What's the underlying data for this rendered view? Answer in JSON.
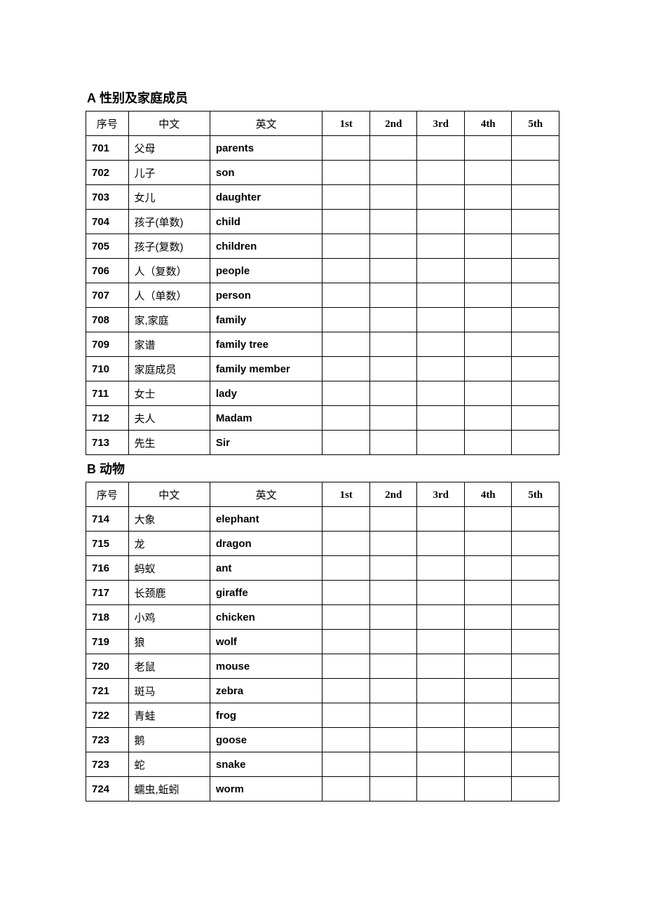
{
  "headers": {
    "seq": "序号",
    "cn": "中文",
    "en": "英文",
    "ord1": "1st",
    "ord2": "2nd",
    "ord3": "3rd",
    "ord4": "4th",
    "ord5": "5th"
  },
  "sections": [
    {
      "prefix": "A",
      "title": "性别及家庭成员",
      "rows": [
        {
          "seq": "701",
          "cn": "父母",
          "en": "parents"
        },
        {
          "seq": "702",
          "cn": "儿子",
          "en": "son"
        },
        {
          "seq": "703",
          "cn": "女儿",
          "en": "daughter"
        },
        {
          "seq": "704",
          "cn": "孩子(单数)",
          "en": "child"
        },
        {
          "seq": "705",
          "cn": "孩子(复数)",
          "en": "children"
        },
        {
          "seq": "706",
          "cn": "人（复数）",
          "en": "people"
        },
        {
          "seq": "707",
          "cn": "人（单数）",
          "en": "person"
        },
        {
          "seq": "708",
          "cn": "家,家庭",
          "en": "family"
        },
        {
          "seq": "709",
          "cn": "家谱",
          "en": "family tree"
        },
        {
          "seq": "710",
          "cn": "家庭成员",
          "en": "family member"
        },
        {
          "seq": "711",
          "cn": "女士",
          "en": "lady"
        },
        {
          "seq": "712",
          "cn": "夫人",
          "en": "Madam"
        },
        {
          "seq": "713",
          "cn": "先生",
          "en": "Sir"
        }
      ]
    },
    {
      "prefix": "B",
      "title": "动物",
      "rows": [
        {
          "seq": "714",
          "cn": "大象",
          "en": "elephant"
        },
        {
          "seq": "715",
          "cn": "龙",
          "en": "dragon"
        },
        {
          "seq": "716",
          "cn": "蚂蚁",
          "en": "ant"
        },
        {
          "seq": "717",
          "cn": "长颈鹿",
          "en": "giraffe"
        },
        {
          "seq": "718",
          "cn": "小鸡",
          "en": "chicken"
        },
        {
          "seq": "719",
          "cn": "狼",
          "en": "wolf"
        },
        {
          "seq": "720",
          "cn": "老鼠",
          "en": "mouse"
        },
        {
          "seq": "721",
          "cn": "斑马",
          "en": "zebra"
        },
        {
          "seq": "722",
          "cn": "青蛙",
          "en": "frog"
        },
        {
          "seq": "723",
          "cn": "鹅",
          "en": "goose"
        },
        {
          "seq": "723",
          "cn": "蛇",
          "en": "snake"
        },
        {
          "seq": "724",
          "cn": "蠕虫,蚯蚓",
          "en": "worm"
        }
      ]
    }
  ]
}
